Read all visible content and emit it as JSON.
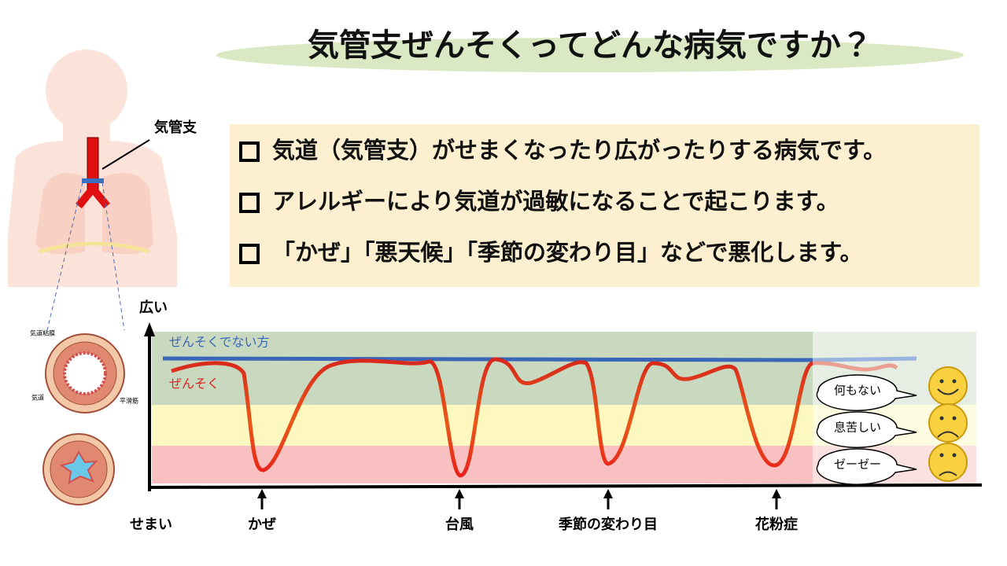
{
  "header": {
    "title": "気管支ぜんそくってどんな病気ですか？"
  },
  "anatomy": {
    "label": "気管支",
    "cross_section": {
      "mucosa": "気道粘膜",
      "airway": "気道",
      "muscle": "平滑筋"
    }
  },
  "bullets": [
    "気道（気管支）がせまくなったり広がったりする病気です。",
    "アレルギーにより気道が過敏になることで起こります。",
    "「かぜ」「悪天候」「季節の変わり目」などで悪化します。"
  ],
  "diagram": {
    "axis_top": "広い",
    "axis_bottom": "せまい",
    "normal_label": "ぜんそくでない方",
    "asthma_label": "ぜんそく",
    "states": [
      "何もない",
      "息苦しい",
      "ゼーゼー"
    ],
    "triggers": [
      "かぜ",
      "台風",
      "季節の変わり目",
      "花粉症"
    ]
  }
}
